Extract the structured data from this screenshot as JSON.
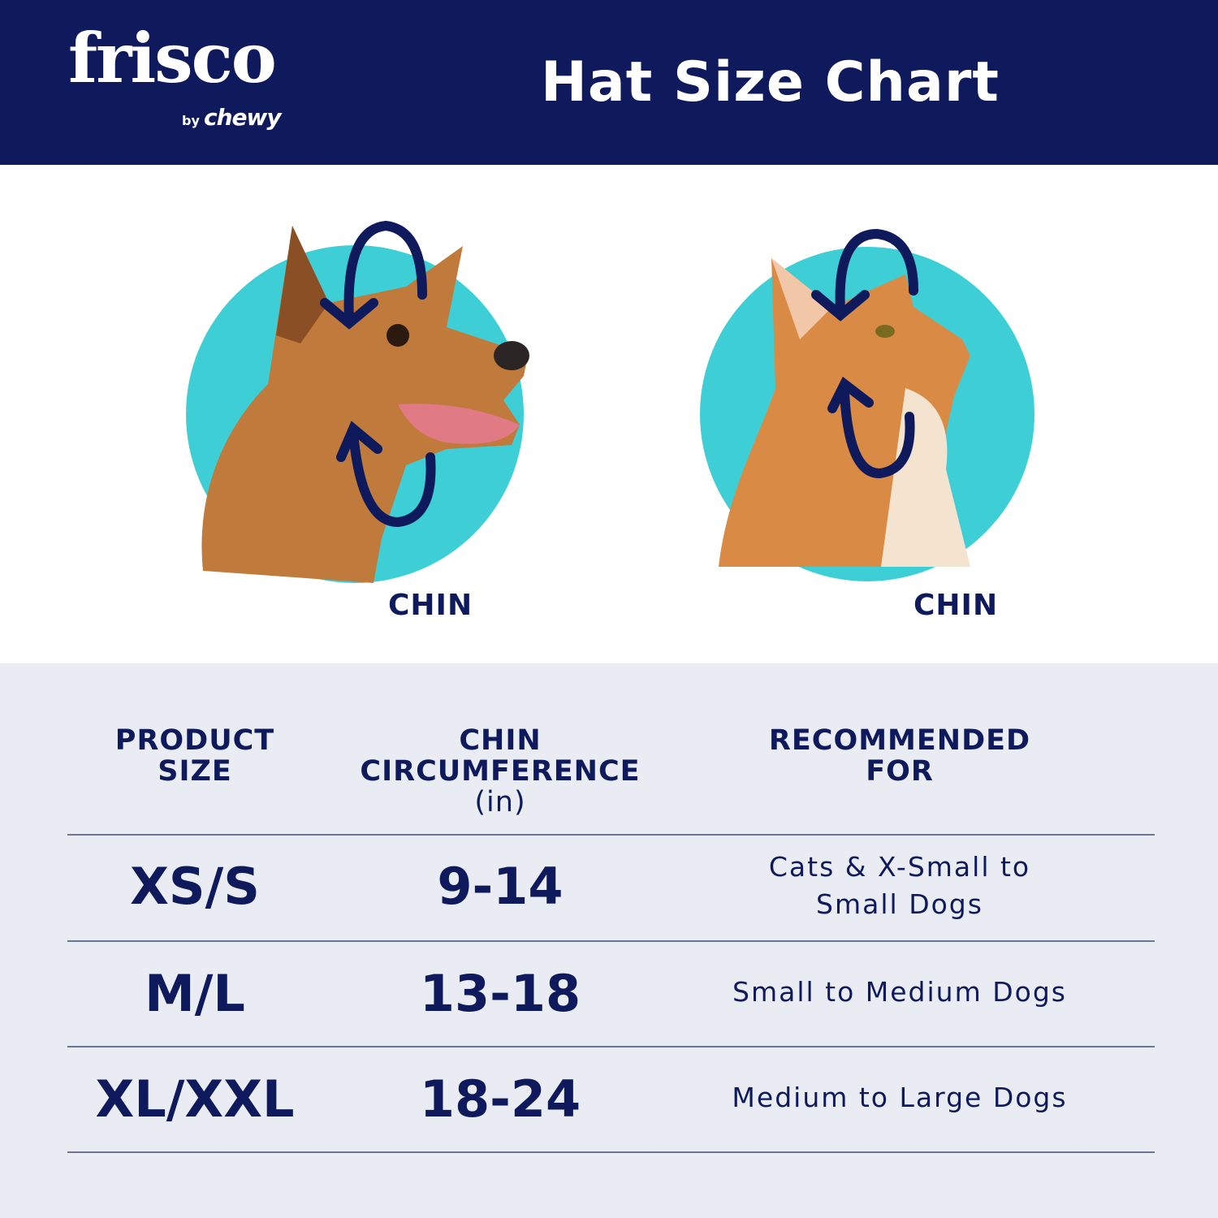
{
  "brand": {
    "logo_text": "frisco",
    "logo_sub_by": "by",
    "logo_sub_brand": "chewy"
  },
  "header": {
    "title": "Hat Size Chart"
  },
  "illustrations": {
    "dog": {
      "label": "CHIN"
    },
    "cat": {
      "label": "CHIN"
    }
  },
  "colors": {
    "navy": "#0f1a5c",
    "teal": "#3ecfd6",
    "table_bg": "#e9edf3"
  },
  "table": {
    "headers": [
      {
        "line1": "PRODUCT",
        "line2": "SIZE",
        "line3": ""
      },
      {
        "line1": "CHIN",
        "line2": "CIRCUMFERENCE",
        "line3": "(in)"
      },
      {
        "line1": "RECOMMENDED",
        "line2": "FOR",
        "line3": ""
      }
    ],
    "rows": [
      {
        "size": "XS/S",
        "chin": "9-14",
        "rec_line1": "Cats & X-Small to",
        "rec_line2": "Small Dogs"
      },
      {
        "size": "M/L",
        "chin": "13-18",
        "rec_line1": "Small to Medium Dogs",
        "rec_line2": ""
      },
      {
        "size": "XL/XXL",
        "chin": "18-24",
        "rec_line1": "Medium to Large Dogs",
        "rec_line2": ""
      }
    ]
  }
}
